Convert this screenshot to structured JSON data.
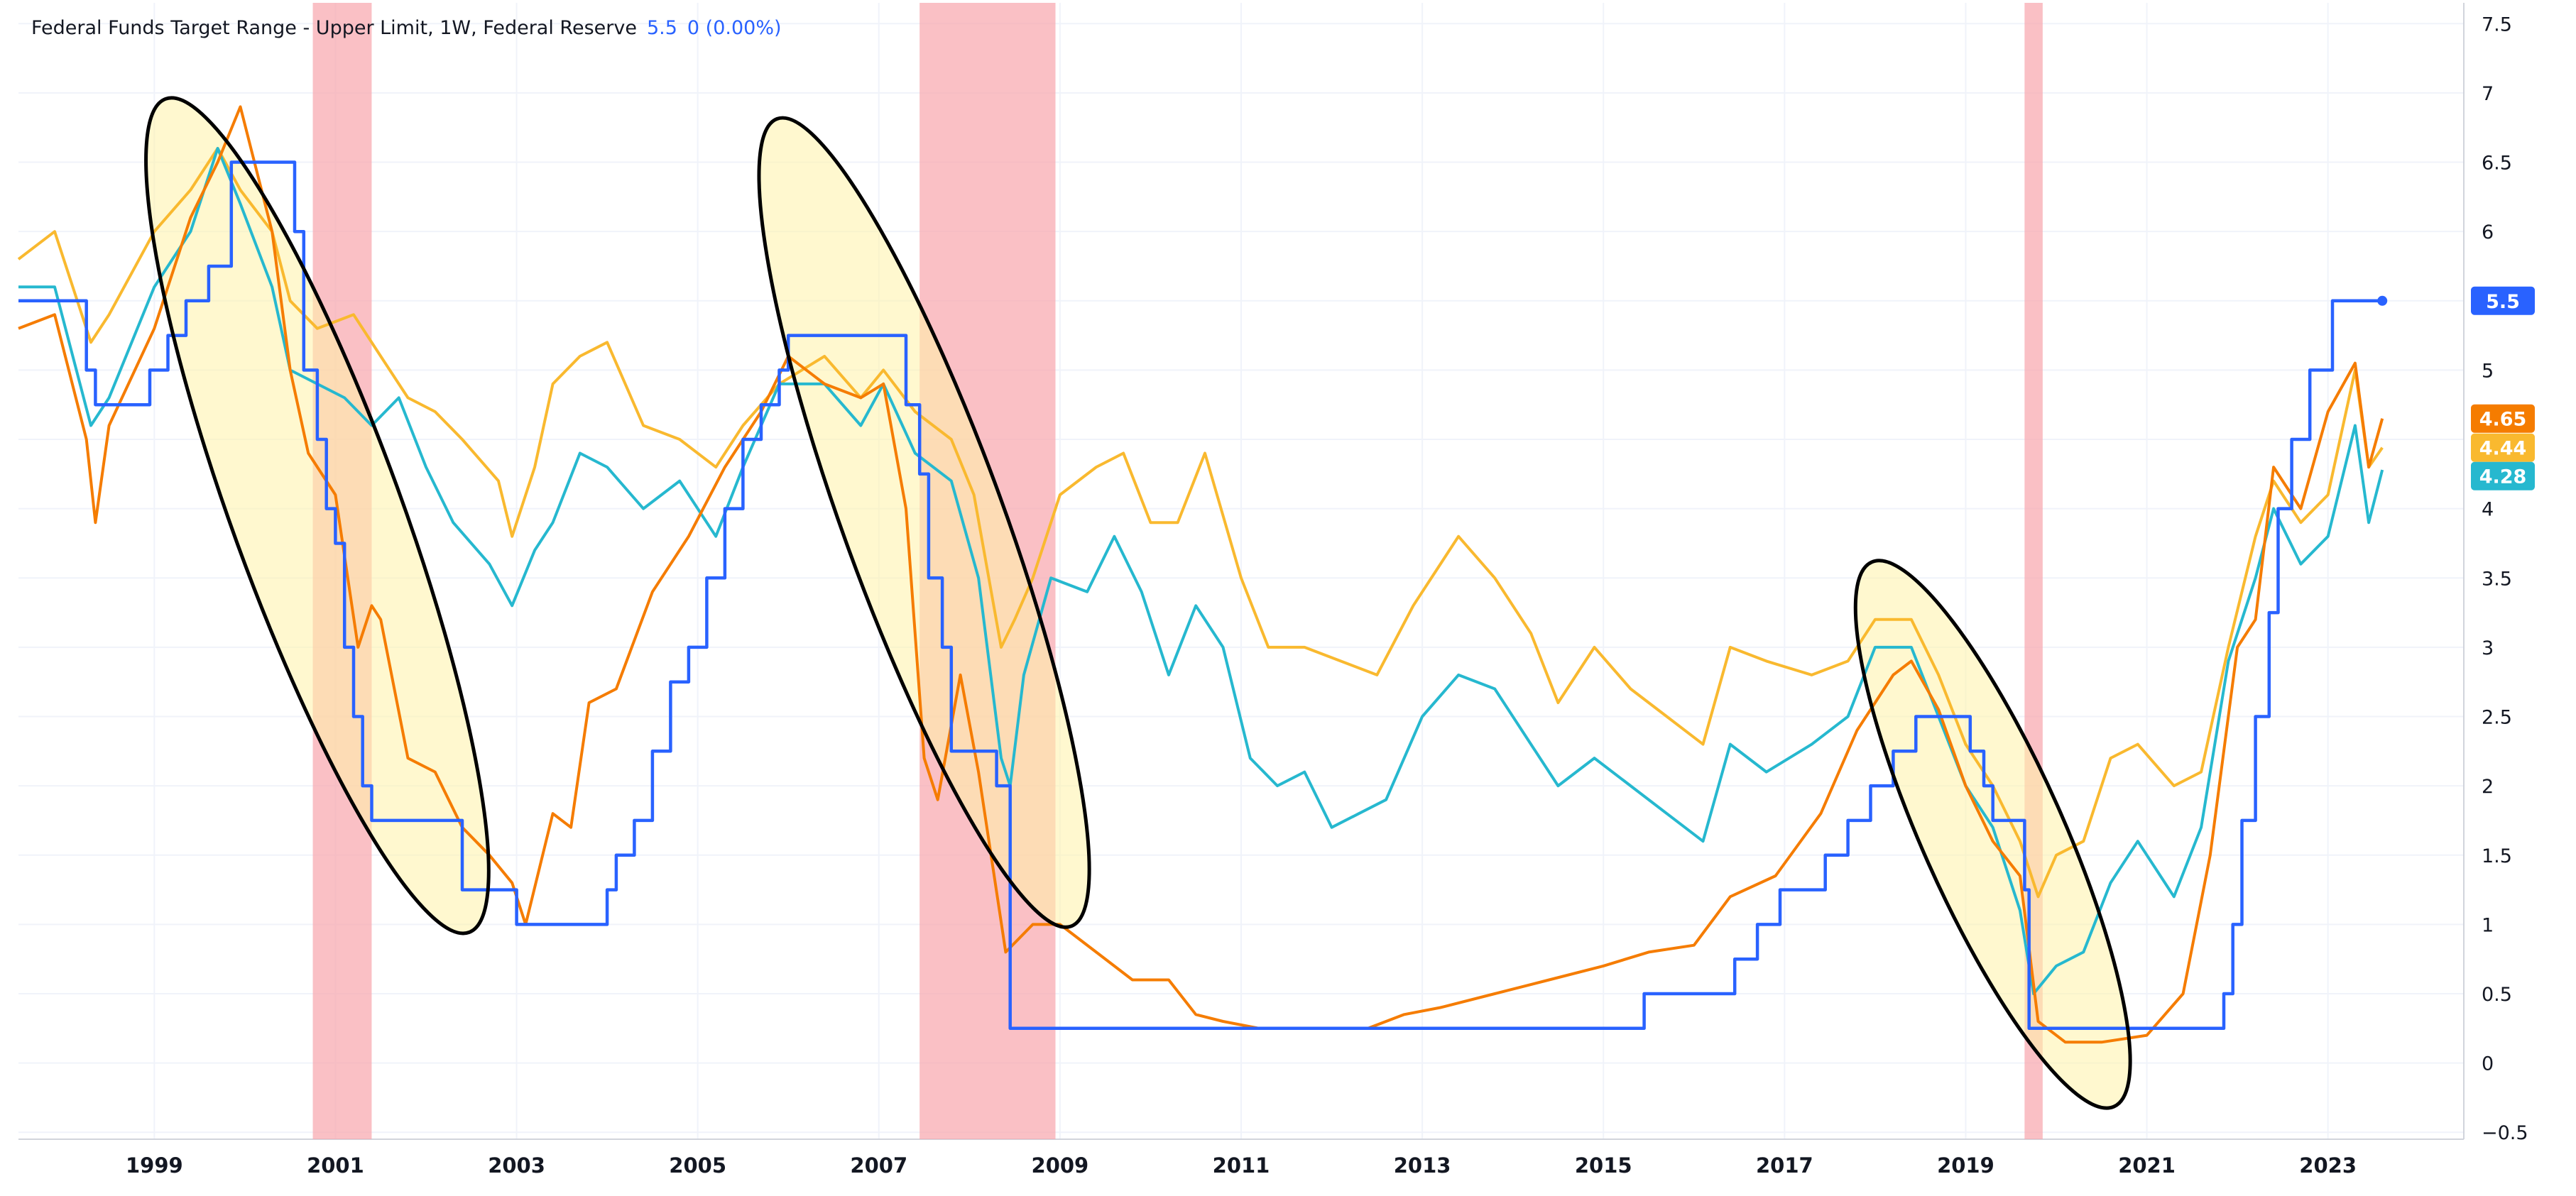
{
  "legend": {
    "title": "Federal Funds Target Range - Upper Limit, 1W, Federal Reserve",
    "value": "5.5",
    "change": "0 (0.00%)"
  },
  "colors": {
    "fed_funds": "#2962ff",
    "orange": "#f57c00",
    "yellow": "#f9b92f",
    "teal": "#26b8cf",
    "recession": "#f8a5ad",
    "ellipse_fill": "#fff3a8",
    "grid": "#f0f3fa",
    "axis_text": "#131722"
  },
  "chart_data": {
    "type": "line",
    "x_range": [
      1998.0,
      2025.0
    ],
    "y_range": [
      -0.55,
      7.65
    ],
    "y_ticks": [
      7.5,
      7,
      6.5,
      6,
      5.5,
      5,
      4.5,
      4,
      3.5,
      3,
      2.5,
      2,
      1.5,
      1,
      0.5,
      0,
      -0.5
    ],
    "y_tick_labels": [
      "7.5",
      "7",
      "6.5",
      "6",
      "",
      "5",
      "",
      "4",
      "3.5",
      "3",
      "2.5",
      "2",
      "1.5",
      "1",
      "0.5",
      "0",
      "−0.5"
    ],
    "x_ticks": [
      1999,
      2001,
      2003,
      2005,
      2007,
      2009,
      2011,
      2013,
      2015,
      2017,
      2019,
      2021,
      2023
    ],
    "recessions": [
      [
        2001.25,
        2001.9
      ],
      [
        2007.95,
        2009.45
      ],
      [
        2020.15,
        2020.35
      ]
    ],
    "ellipses": [
      {
        "cx": 2001.3,
        "cy": 3.95,
        "rx": 1.8,
        "ry": 3.2,
        "angle_deg": -20
      },
      {
        "cx": 2008.0,
        "cy": 3.9,
        "rx": 1.7,
        "ry": 3.1,
        "angle_deg": -20
      },
      {
        "cx": 2019.8,
        "cy": 1.65,
        "rx": 1.5,
        "ry": 2.15,
        "angle_deg": -24
      }
    ],
    "series": [
      {
        "name": "Federal Funds Target Range - Upper Limit",
        "color_key": "fed_funds",
        "step": true,
        "x": [
          1998.0,
          1998.75,
          1998.85,
          1998.95,
          1999.45,
          1999.65,
          1999.85,
          2000.1,
          2000.35,
          2000.95,
          2001.05,
          2001.15,
          2001.3,
          2001.4,
          2001.5,
          2001.6,
          2001.7,
          2001.8,
          2001.9,
          2002.9,
          2003.5,
          2004.5,
          2004.6,
          2004.8,
          2005.0,
          2005.2,
          2005.4,
          2005.6,
          2005.8,
          2006.0,
          2006.2,
          2006.4,
          2006.5,
          2007.7,
          2007.8,
          2007.95,
          2008.05,
          2008.2,
          2008.3,
          2008.8,
          2008.95,
          2015.95,
          2016.95,
          2017.2,
          2017.45,
          2017.95,
          2018.2,
          2018.45,
          2018.7,
          2018.95,
          2019.55,
          2019.7,
          2019.8,
          2020.15,
          2020.2,
          2022.2,
          2022.35,
          2022.45,
          2022.55,
          2022.7,
          2022.85,
          2022.95,
          2023.1,
          2023.3,
          2023.55,
          2024.1
        ],
        "y": [
          5.5,
          5.0,
          4.75,
          4.75,
          5.0,
          5.25,
          5.5,
          5.75,
          6.5,
          6.5,
          6.0,
          5.0,
          4.5,
          4.0,
          3.75,
          3.0,
          2.5,
          2.0,
          1.75,
          1.25,
          1.0,
          1.25,
          1.5,
          1.75,
          2.25,
          2.75,
          3.0,
          3.5,
          4.0,
          4.5,
          4.75,
          5.0,
          5.25,
          5.25,
          4.75,
          4.25,
          3.5,
          3.0,
          2.25,
          2.0,
          0.25,
          0.5,
          0.75,
          1.0,
          1.25,
          1.5,
          1.75,
          2.0,
          2.25,
          2.5,
          2.25,
          2.0,
          1.75,
          1.25,
          0.25,
          0.25,
          0.5,
          1.0,
          1.75,
          2.5,
          3.25,
          4.0,
          4.5,
          5.0,
          5.5,
          5.5
        ]
      },
      {
        "name": "",
        "color_key": "orange",
        "x": [
          1998.0,
          1998.4,
          1998.75,
          1998.85,
          1999.0,
          1999.5,
          1999.9,
          2000.2,
          2000.45,
          2000.8,
          2001.0,
          2001.2,
          2001.5,
          2001.75,
          2001.9,
          2002.0,
          2002.3,
          2002.6,
          2002.9,
          2003.2,
          2003.45,
          2003.6,
          2003.9,
          2004.1,
          2004.3,
          2004.6,
          2005.0,
          2005.4,
          2005.8,
          2006.2,
          2006.5,
          2006.9,
          2007.3,
          2007.55,
          2007.8,
          2008.0,
          2008.15,
          2008.4,
          2008.6,
          2008.9,
          2009.2,
          2009.5,
          2009.9,
          2010.3,
          2010.7,
          2011.0,
          2011.3,
          2011.7,
          2012.3,
          2012.9,
          2013.3,
          2013.7,
          2014.3,
          2014.9,
          2015.5,
          2016.0,
          2016.5,
          2016.9,
          2017.4,
          2017.9,
          2018.3,
          2018.7,
          2018.9,
          2019.2,
          2019.5,
          2019.8,
          2020.1,
          2020.3,
          2020.6,
          2021.0,
          2021.5,
          2021.9,
          2022.2,
          2022.5,
          2022.7,
          2022.9,
          2023.2,
          2023.5,
          2023.8,
          2023.95,
          2024.1
        ],
        "y": [
          5.3,
          5.4,
          4.5,
          3.9,
          4.6,
          5.3,
          6.1,
          6.5,
          6.9,
          6.0,
          5.0,
          4.4,
          4.1,
          3.0,
          3.3,
          3.2,
          2.2,
          2.1,
          1.7,
          1.5,
          1.3,
          1.0,
          1.8,
          1.7,
          2.6,
          2.7,
          3.4,
          3.8,
          4.3,
          4.7,
          5.1,
          4.9,
          4.8,
          4.9,
          4.0,
          2.2,
          1.9,
          2.8,
          2.1,
          0.8,
          1.0,
          1.0,
          0.8,
          0.6,
          0.6,
          0.35,
          0.3,
          0.25,
          0.25,
          0.25,
          0.35,
          0.4,
          0.5,
          0.6,
          0.7,
          0.8,
          0.85,
          1.2,
          1.35,
          1.8,
          2.4,
          2.8,
          2.9,
          2.55,
          2.0,
          1.6,
          1.35,
          0.3,
          0.15,
          0.15,
          0.2,
          0.5,
          1.5,
          3.0,
          3.2,
          4.3,
          4.0,
          4.7,
          5.05,
          4.3,
          4.65
        ]
      },
      {
        "name": "",
        "color_key": "yellow",
        "x": [
          1998.0,
          1998.4,
          1998.8,
          1999.0,
          1999.5,
          1999.9,
          2000.2,
          2000.45,
          2000.8,
          2001.0,
          2001.3,
          2001.7,
          2002.0,
          2002.3,
          2002.6,
          2002.9,
          2003.3,
          2003.45,
          2003.7,
          2003.9,
          2004.2,
          2004.5,
          2004.9,
          2005.3,
          2005.7,
          2006.0,
          2006.4,
          2006.9,
          2007.3,
          2007.55,
          2007.9,
          2008.3,
          2008.55,
          2008.85,
          2009.0,
          2009.2,
          2009.5,
          2009.9,
          2010.2,
          2010.5,
          2010.8,
          2011.1,
          2011.5,
          2011.8,
          2012.2,
          2012.6,
          2013.0,
          2013.4,
          2013.9,
          2014.3,
          2014.7,
          2015.0,
          2015.4,
          2015.8,
          2016.2,
          2016.6,
          2016.9,
          2017.3,
          2017.8,
          2018.2,
          2018.5,
          2018.9,
          2019.2,
          2019.5,
          2019.8,
          2020.1,
          2020.3,
          2020.5,
          2020.8,
          2021.1,
          2021.4,
          2021.8,
          2022.1,
          2022.4,
          2022.7,
          2022.9,
          2023.2,
          2023.5,
          2023.8,
          2023.95,
          2024.1
        ],
        "y": [
          5.8,
          6.0,
          5.2,
          5.4,
          6.0,
          6.3,
          6.6,
          6.3,
          6.0,
          5.5,
          5.3,
          5.4,
          5.1,
          4.8,
          4.7,
          4.5,
          4.2,
          3.8,
          4.3,
          4.9,
          5.1,
          5.2,
          4.6,
          4.5,
          4.3,
          4.6,
          4.9,
          5.1,
          4.8,
          5.0,
          4.7,
          4.5,
          4.1,
          3.0,
          3.2,
          3.5,
          4.1,
          4.3,
          4.4,
          3.9,
          3.9,
          4.4,
          3.5,
          3.0,
          3.0,
          2.9,
          2.8,
          3.3,
          3.8,
          3.5,
          3.1,
          2.6,
          3.0,
          2.7,
          2.5,
          2.3,
          3.0,
          2.9,
          2.8,
          2.9,
          3.2,
          3.2,
          2.8,
          2.3,
          2.0,
          1.6,
          1.2,
          1.5,
          1.6,
          2.2,
          2.3,
          2.0,
          2.1,
          3.0,
          3.8,
          4.2,
          3.9,
          4.1,
          5.0,
          4.3,
          4.44
        ]
      },
      {
        "name": "",
        "color_key": "teal",
        "x": [
          1998.0,
          1998.4,
          1998.8,
          1999.0,
          1999.5,
          1999.9,
          2000.2,
          2000.45,
          2000.8,
          2001.0,
          2001.3,
          2001.6,
          2001.9,
          2002.2,
          2002.5,
          2002.8,
          2003.2,
          2003.45,
          2003.7,
          2003.9,
          2004.2,
          2004.5,
          2004.9,
          2005.3,
          2005.7,
          2006.0,
          2006.4,
          2006.9,
          2007.3,
          2007.55,
          2007.9,
          2008.3,
          2008.6,
          2008.85,
          2008.95,
          2009.1,
          2009.4,
          2009.8,
          2010.1,
          2010.4,
          2010.7,
          2011.0,
          2011.3,
          2011.6,
          2011.9,
          2012.2,
          2012.5,
          2012.8,
          2013.1,
          2013.5,
          2013.9,
          2014.3,
          2014.7,
          2015.0,
          2015.4,
          2015.8,
          2016.2,
          2016.6,
          2016.9,
          2017.3,
          2017.8,
          2018.2,
          2018.5,
          2018.9,
          2019.2,
          2019.5,
          2019.8,
          2020.1,
          2020.25,
          2020.5,
          2020.8,
          2021.1,
          2021.4,
          2021.8,
          2022.1,
          2022.4,
          2022.7,
          2022.9,
          2023.2,
          2023.5,
          2023.8,
          2023.95,
          2024.1
        ],
        "y": [
          5.6,
          5.6,
          4.6,
          4.8,
          5.6,
          6.0,
          6.6,
          6.2,
          5.6,
          5.0,
          4.9,
          4.8,
          4.6,
          4.8,
          4.3,
          3.9,
          3.6,
          3.3,
          3.7,
          3.9,
          4.4,
          4.3,
          4.0,
          4.2,
          3.8,
          4.3,
          4.9,
          4.9,
          4.6,
          4.9,
          4.4,
          4.2,
          3.5,
          2.2,
          2.0,
          2.8,
          3.5,
          3.4,
          3.8,
          3.4,
          2.8,
          3.3,
          3.0,
          2.2,
          2.0,
          2.1,
          1.7,
          1.8,
          1.9,
          2.5,
          2.8,
          2.7,
          2.3,
          2.0,
          2.2,
          2.0,
          1.8,
          1.6,
          2.3,
          2.1,
          2.3,
          2.5,
          3.0,
          3.0,
          2.5,
          2.0,
          1.7,
          1.1,
          0.5,
          0.7,
          0.8,
          1.3,
          1.6,
          1.2,
          1.7,
          2.9,
          3.5,
          4.0,
          3.6,
          3.8,
          4.6,
          3.9,
          4.28
        ]
      }
    ],
    "last_value_labels": [
      {
        "text": "5.5",
        "value": 5.5,
        "color_key": "fed_funds"
      },
      {
        "text": "4.65",
        "value": 4.65,
        "color_key": "orange"
      },
      {
        "text": "4.44",
        "value": 4.44,
        "color_key": "yellow"
      },
      {
        "text": "4.28",
        "value": 4.28,
        "color_key": "teal"
      }
    ]
  }
}
